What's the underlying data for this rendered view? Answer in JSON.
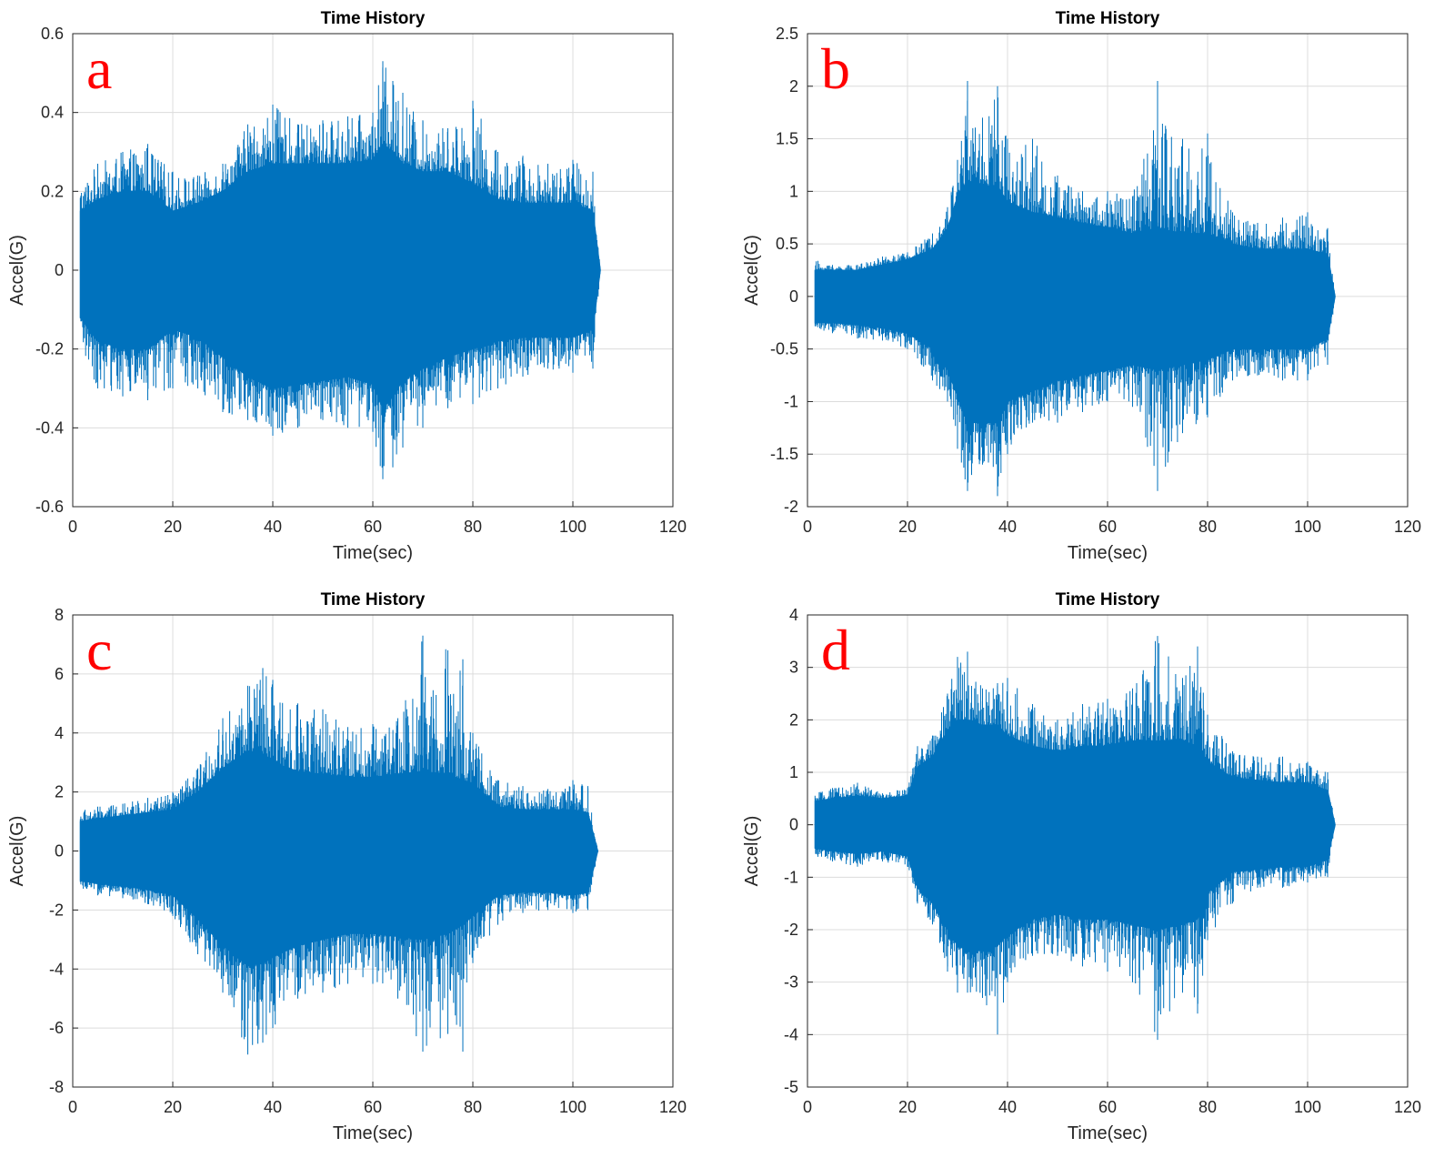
{
  "chart_data": [
    {
      "type": "line",
      "panel": "a",
      "title": "Time History",
      "xlabel": "Time(sec)",
      "ylabel": "Accel(G)",
      "xlim": [
        0,
        120
      ],
      "ylim": [
        -0.6,
        0.6
      ],
      "xticks": [
        "0",
        "20",
        "40",
        "60",
        "80",
        "100",
        "120"
      ],
      "yticks": [
        "-0.6",
        "-0.4",
        "-0.2",
        "0",
        "0.2",
        "0.4",
        "0.6"
      ],
      "grid": true,
      "color": "#0072BD",
      "series": [
        {
          "x": [
            1.5,
            5,
            10,
            15,
            20,
            25,
            30,
            35,
            40,
            45,
            50,
            55,
            60,
            62,
            64,
            66,
            70,
            75,
            80,
            85,
            90,
            95,
            100,
            104,
            105.5
          ],
          "upper": [
            0.22,
            0.27,
            0.3,
            0.32,
            0.25,
            0.24,
            0.27,
            0.37,
            0.42,
            0.37,
            0.38,
            0.39,
            0.4,
            0.53,
            0.48,
            0.45,
            0.38,
            0.36,
            0.43,
            0.3,
            0.29,
            0.27,
            0.28,
            0.25,
            0.0
          ],
          "lower": [
            -0.2,
            -0.3,
            -0.32,
            -0.33,
            -0.3,
            -0.3,
            -0.36,
            -0.38,
            -0.42,
            -0.4,
            -0.38,
            -0.4,
            -0.41,
            -0.53,
            -0.5,
            -0.45,
            -0.4,
            -0.35,
            -0.34,
            -0.3,
            -0.27,
            -0.25,
            -0.26,
            -0.25,
            0.0
          ],
          "body_upper": [
            0.15,
            0.18,
            0.2,
            0.2,
            0.15,
            0.17,
            0.2,
            0.25,
            0.27,
            0.27,
            0.27,
            0.27,
            0.28,
            0.32,
            0.3,
            0.27,
            0.25,
            0.25,
            0.22,
            0.18,
            0.17,
            0.17,
            0.17,
            0.15,
            0.0
          ],
          "body_lower": [
            -0.12,
            -0.18,
            -0.2,
            -0.2,
            -0.15,
            -0.17,
            -0.22,
            -0.27,
            -0.3,
            -0.29,
            -0.28,
            -0.27,
            -0.29,
            -0.35,
            -0.32,
            -0.28,
            -0.25,
            -0.22,
            -0.2,
            -0.18,
            -0.17,
            -0.17,
            -0.17,
            -0.15,
            0.0
          ]
        }
      ]
    },
    {
      "type": "line",
      "panel": "b",
      "title": "Time History",
      "xlabel": "Time(sec)",
      "ylabel": "Accel(G)",
      "xlim": [
        0,
        120
      ],
      "ylim": [
        -2,
        2.5
      ],
      "xticks": [
        "0",
        "20",
        "40",
        "60",
        "80",
        "100",
        "120"
      ],
      "yticks": [
        "-2",
        "-1.5",
        "-1",
        "-0.5",
        "0",
        "0.5",
        "1",
        "1.5",
        "2",
        "2.5"
      ],
      "grid": true,
      "color": "#0072BD",
      "series": [
        {
          "x": [
            1.5,
            5,
            10,
            15,
            20,
            25,
            28,
            30,
            32,
            35,
            38,
            40,
            45,
            50,
            55,
            60,
            65,
            70,
            75,
            80,
            85,
            90,
            95,
            100,
            104,
            105.5
          ],
          "upper": [
            0.35,
            0.3,
            0.3,
            0.38,
            0.42,
            0.6,
            0.85,
            1.3,
            2.05,
            1.7,
            2.0,
            1.5,
            1.5,
            1.15,
            1.0,
            1.0,
            0.95,
            2.05,
            1.5,
            1.55,
            0.8,
            0.7,
            0.75,
            0.8,
            0.65,
            0.0
          ],
          "lower": [
            -0.3,
            -0.35,
            -0.4,
            -0.42,
            -0.5,
            -0.8,
            -1.0,
            -1.45,
            -1.85,
            -1.6,
            -1.9,
            -1.5,
            -1.2,
            -1.2,
            -1.1,
            -1.0,
            -1.05,
            -1.85,
            -1.3,
            -1.15,
            -0.8,
            -0.75,
            -0.8,
            -0.8,
            -0.65,
            0.0
          ],
          "body_upper": [
            0.25,
            0.25,
            0.25,
            0.3,
            0.35,
            0.45,
            0.65,
            0.95,
            1.1,
            1.05,
            1.05,
            0.9,
            0.8,
            0.75,
            0.7,
            0.65,
            0.6,
            0.65,
            0.6,
            0.6,
            0.5,
            0.45,
            0.45,
            0.45,
            0.4,
            0.0
          ],
          "body_lower": [
            -0.25,
            -0.25,
            -0.27,
            -0.3,
            -0.35,
            -0.5,
            -0.7,
            -0.95,
            -1.2,
            -1.2,
            -1.2,
            -1.0,
            -0.9,
            -0.8,
            -0.75,
            -0.7,
            -0.65,
            -0.7,
            -0.65,
            -0.6,
            -0.5,
            -0.5,
            -0.5,
            -0.5,
            -0.4,
            0.0
          ]
        }
      ]
    },
    {
      "type": "line",
      "panel": "c",
      "title": "Time History",
      "xlabel": "Time(sec)",
      "ylabel": "Accel(G)",
      "xlim": [
        0,
        120
      ],
      "ylim": [
        -8,
        8
      ],
      "xticks": [
        "0",
        "20",
        "40",
        "60",
        "80",
        "100",
        "120"
      ],
      "yticks": [
        "-8",
        "-6",
        "-4",
        "-2",
        "0",
        "2",
        "4",
        "6",
        "8"
      ],
      "grid": true,
      "color": "#0072BD",
      "series": [
        {
          "x": [
            1.5,
            5,
            10,
            15,
            20,
            25,
            30,
            35,
            38,
            40,
            45,
            50,
            55,
            60,
            65,
            70,
            75,
            78,
            80,
            85,
            90,
            95,
            100,
            103,
            105
          ],
          "upper": [
            1.4,
            1.5,
            1.6,
            1.8,
            2.0,
            2.8,
            4.5,
            5.6,
            6.2,
            5.8,
            5.0,
            4.8,
            4.2,
            4.3,
            4.5,
            7.3,
            6.8,
            6.5,
            4.0,
            2.4,
            2.2,
            2.1,
            2.4,
            2.2,
            0.0
          ],
          "lower": [
            -1.3,
            -1.5,
            -1.6,
            -1.8,
            -2.2,
            -3.5,
            -4.8,
            -6.9,
            -6.5,
            -6.0,
            -5.0,
            -4.8,
            -4.5,
            -4.5,
            -5.0,
            -6.8,
            -6.2,
            -6.8,
            -3.8,
            -2.5,
            -2.1,
            -2.0,
            -2.1,
            -2.0,
            0.0
          ],
          "body_upper": [
            1.0,
            1.1,
            1.2,
            1.3,
            1.4,
            2.0,
            2.8,
            3.4,
            3.3,
            3.0,
            2.7,
            2.6,
            2.5,
            2.5,
            2.6,
            2.7,
            2.6,
            2.4,
            2.3,
            1.5,
            1.4,
            1.4,
            1.4,
            1.3,
            0.0
          ],
          "body_lower": [
            -1.0,
            -1.1,
            -1.2,
            -1.3,
            -1.5,
            -2.3,
            -3.2,
            -3.9,
            -3.8,
            -3.6,
            -3.2,
            -3.0,
            -2.8,
            -2.8,
            -2.9,
            -3.0,
            -2.8,
            -2.5,
            -2.2,
            -1.5,
            -1.4,
            -1.4,
            -1.5,
            -1.4,
            0.0
          ]
        }
      ]
    },
    {
      "type": "line",
      "panel": "d",
      "title": "Time History",
      "xlabel": "Time(sec)",
      "ylabel": "Accel(G)",
      "xlim": [
        0,
        120
      ],
      "ylim": [
        -5,
        4
      ],
      "xticks": [
        "0",
        "20",
        "40",
        "60",
        "80",
        "100",
        "120"
      ],
      "yticks": [
        "-5",
        "-4",
        "-3",
        "-2",
        "-1",
        "0",
        "1",
        "2",
        "3",
        "4"
      ],
      "grid": true,
      "color": "#0072BD",
      "series": [
        {
          "x": [
            1.5,
            5,
            10,
            15,
            20,
            22,
            25,
            28,
            30,
            32,
            35,
            38,
            40,
            45,
            50,
            55,
            60,
            65,
            70,
            75,
            78,
            80,
            85,
            90,
            95,
            100,
            104,
            105.5
          ],
          "upper": [
            0.6,
            0.7,
            0.8,
            0.6,
            0.7,
            1.5,
            1.7,
            2.5,
            3.2,
            3.3,
            2.6,
            2.7,
            2.8,
            2.3,
            2.0,
            2.3,
            2.4,
            2.6,
            3.6,
            2.8,
            3.4,
            2.1,
            1.4,
            1.3,
            1.3,
            1.2,
            1.0,
            0.0
          ],
          "lower": [
            -0.6,
            -0.7,
            -0.8,
            -0.7,
            -0.8,
            -1.5,
            -1.9,
            -2.8,
            -3.2,
            -3.2,
            -3.3,
            -4.0,
            -3.0,
            -2.5,
            -2.5,
            -2.7,
            -2.8,
            -3.0,
            -4.1,
            -3.2,
            -3.6,
            -2.2,
            -1.5,
            -1.2,
            -1.2,
            -1.1,
            -1.0,
            0.0
          ],
          "body_upper": [
            0.45,
            0.5,
            0.55,
            0.5,
            0.55,
            1.1,
            1.3,
            1.8,
            2.0,
            2.0,
            1.9,
            1.9,
            1.7,
            1.5,
            1.4,
            1.5,
            1.5,
            1.6,
            1.6,
            1.6,
            1.5,
            1.2,
            0.9,
            0.85,
            0.8,
            0.8,
            0.65,
            0.0
          ],
          "body_lower": [
            -0.45,
            -0.5,
            -0.55,
            -0.5,
            -0.6,
            -1.2,
            -1.5,
            -2.0,
            -2.3,
            -2.4,
            -2.4,
            -2.3,
            -2.1,
            -1.8,
            -1.7,
            -1.8,
            -1.8,
            -1.9,
            -2.0,
            -1.9,
            -1.8,
            -1.3,
            -0.9,
            -0.85,
            -0.8,
            -0.8,
            -0.65,
            0.0
          ]
        }
      ]
    }
  ]
}
